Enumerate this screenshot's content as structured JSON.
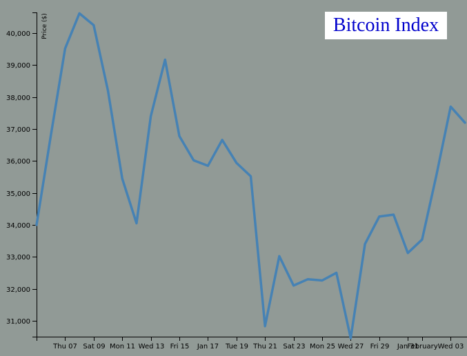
{
  "chart_data": {
    "type": "line",
    "title": "Bitcoin Index",
    "xlabel": "",
    "ylabel": "Price ($)",
    "ylim": [
      30500,
      40650
    ],
    "y_ticks": [
      "31,000",
      "32,000",
      "33,000",
      "34,000",
      "35,000",
      "36,000",
      "37,000",
      "38,000",
      "39,000",
      "40,000"
    ],
    "y_tick_values": [
      31000,
      32000,
      33000,
      34000,
      35000,
      36000,
      37000,
      38000,
      39000,
      40000
    ],
    "x_ticks": [
      "Thu 07",
      "Sat 09",
      "Mon 11",
      "Wed 13",
      "Fri 15",
      "Jan 17",
      "Tue 19",
      "Thu 21",
      "Sat 23",
      "Mon 25",
      "Wed 27",
      "Fri 29",
      "Jan 31",
      "February",
      "Wed 03"
    ],
    "x_tick_dates": [
      "2021-01-07",
      "2021-01-09",
      "2021-01-11",
      "2021-01-13",
      "2021-01-15",
      "2021-01-17",
      "2021-01-19",
      "2021-01-21",
      "2021-01-23",
      "2021-01-25",
      "2021-01-27",
      "2021-01-29",
      "2021-01-31",
      "2021-02-01",
      "2021-02-03"
    ],
    "series": [
      {
        "color": "#4682b4",
        "points": [
          {
            "x": "2021-01-05",
            "y": 34000
          },
          {
            "x": "2021-01-06",
            "y": 36800
          },
          {
            "x": "2021-01-07",
            "y": 39520
          },
          {
            "x": "2021-01-08",
            "y": 40620
          },
          {
            "x": "2021-01-09",
            "y": 40250
          },
          {
            "x": "2021-01-10",
            "y": 38200
          },
          {
            "x": "2021-01-11",
            "y": 35450
          },
          {
            "x": "2021-01-12",
            "y": 34050
          },
          {
            "x": "2021-01-13",
            "y": 37400
          },
          {
            "x": "2021-01-14",
            "y": 39170
          },
          {
            "x": "2021-01-15",
            "y": 36780
          },
          {
            "x": "2021-01-16",
            "y": 36020
          },
          {
            "x": "2021-01-17",
            "y": 35850
          },
          {
            "x": "2021-01-18",
            "y": 36660
          },
          {
            "x": "2021-01-19",
            "y": 35940
          },
          {
            "x": "2021-01-20",
            "y": 35520
          },
          {
            "x": "2021-01-21",
            "y": 30830
          },
          {
            "x": "2021-01-22",
            "y": 33020
          },
          {
            "x": "2021-01-23",
            "y": 32100
          },
          {
            "x": "2021-01-24",
            "y": 32300
          },
          {
            "x": "2021-01-25",
            "y": 32260
          },
          {
            "x": "2021-01-26",
            "y": 32500
          },
          {
            "x": "2021-01-27",
            "y": 30450
          },
          {
            "x": "2021-01-28",
            "y": 33400
          },
          {
            "x": "2021-01-29",
            "y": 34260
          },
          {
            "x": "2021-01-30",
            "y": 34320
          },
          {
            "x": "2021-01-31",
            "y": 33120
          },
          {
            "x": "2021-02-01",
            "y": 33540
          },
          {
            "x": "2021-02-02",
            "y": 35550
          },
          {
            "x": "2021-02-03",
            "y": 37700
          },
          {
            "x": "2021-02-04",
            "y": 37200
          }
        ]
      }
    ],
    "grid": false,
    "legend": "none",
    "title_placement": "top-right",
    "title_color": "#0000cc",
    "title_background": "#ffffff",
    "background": "#919a96"
  }
}
